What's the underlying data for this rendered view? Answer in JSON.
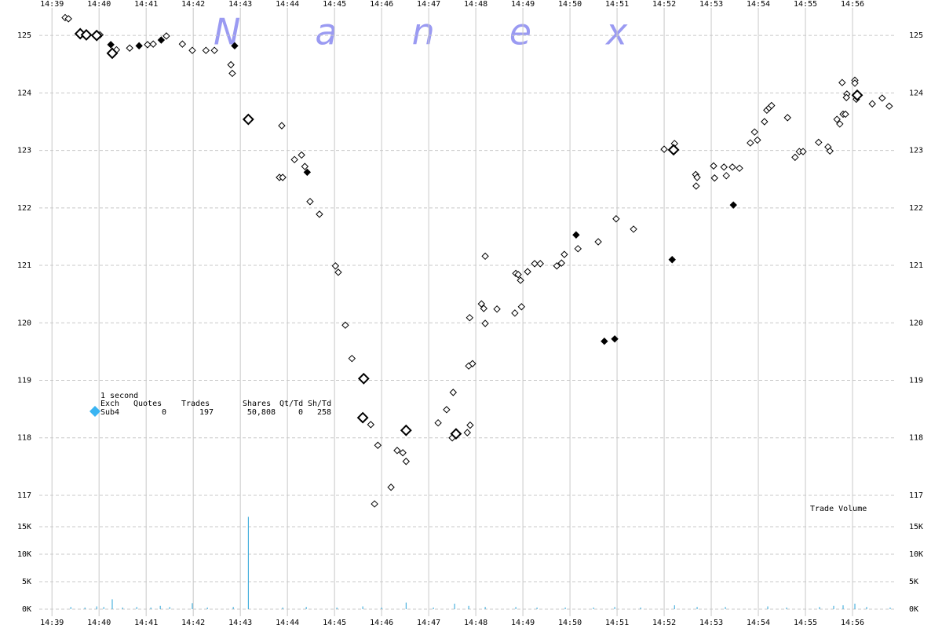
{
  "chart_data": {
    "type": "scatter",
    "watermark": "Nanex",
    "xlim": [
      878.73,
      896.9
    ],
    "xticks": [
      {
        "value": 879,
        "label": "14:39"
      },
      {
        "value": 880,
        "label": "14:40"
      },
      {
        "value": 881,
        "label": "14:41"
      },
      {
        "value": 882,
        "label": "14:42"
      },
      {
        "value": 883,
        "label": "14:43"
      },
      {
        "value": 884,
        "label": "14:44"
      },
      {
        "value": 885,
        "label": "14:45"
      },
      {
        "value": 886,
        "label": "14:46"
      },
      {
        "value": 887,
        "label": "14:47"
      },
      {
        "value": 888,
        "label": "14:48"
      },
      {
        "value": 889,
        "label": "14:49"
      },
      {
        "value": 890,
        "label": "14:50"
      },
      {
        "value": 891,
        "label": "14:51"
      },
      {
        "value": 892,
        "label": "14:52"
      },
      {
        "value": 893,
        "label": "14:53"
      },
      {
        "value": 894,
        "label": "14:54"
      },
      {
        "value": 895,
        "label": "14:55"
      },
      {
        "value": 896,
        "label": "14:56"
      }
    ],
    "ylim": [
      116.74,
      125.48
    ],
    "yticks": [
      117,
      118,
      119,
      120,
      121,
      122,
      123,
      124,
      125
    ],
    "grid": true,
    "series": [
      {
        "color": "#000000",
        "filled": false,
        "marker": "small",
        "x": [
          879.28,
          879.35,
          880.02,
          880.37,
          880.65,
          881.03,
          881.15,
          881.43,
          881.77,
          881.98,
          882.27,
          882.45,
          882.8,
          882.83,
          883.88,
          883.83,
          883.9,
          884.15,
          884.3,
          884.37,
          884.48,
          884.68,
          885.02,
          885.08,
          885.23,
          885.37,
          885.77,
          885.92,
          885.85,
          886.2,
          886.33,
          886.45,
          886.52,
          887.2,
          887.38,
          887.52,
          887.5,
          887.82,
          887.88,
          887.85,
          887.93,
          887.87,
          888.12,
          888.17,
          888.2,
          888.2,
          888.45,
          888.83,
          888.97,
          888.85,
          888.9,
          888.95,
          889.1,
          889.25,
          889.37,
          889.72,
          889.82,
          889.88,
          890.17,
          890.6,
          890.98,
          891.35,
          892.0,
          892.22,
          892.67,
          892.7,
          892.68,
          893.05,
          893.07,
          893.27,
          893.32,
          893.45,
          893.6,
          893.83,
          893.92,
          893.98,
          894.13,
          894.18,
          894.23,
          894.28,
          894.62,
          894.78,
          894.87,
          894.95,
          895.28,
          895.48,
          895.52,
          895.67,
          895.73,
          895.8,
          895.85,
          895.78,
          895.88,
          895.87,
          896.05,
          896.05,
          896.08,
          896.42,
          896.63,
          896.78
        ],
        "values": [
          125.31,
          125.29,
          125.01,
          124.75,
          124.78,
          124.84,
          124.85,
          124.99,
          124.85,
          124.74,
          124.74,
          124.74,
          124.49,
          124.34,
          123.43,
          122.53,
          122.53,
          122.84,
          122.92,
          122.72,
          122.11,
          121.89,
          120.99,
          120.88,
          119.96,
          119.38,
          118.23,
          117.87,
          116.85,
          117.14,
          117.78,
          117.74,
          117.59,
          118.26,
          118.49,
          118.79,
          118.0,
          118.09,
          118.22,
          119.25,
          119.29,
          120.09,
          120.33,
          120.25,
          119.99,
          121.16,
          120.24,
          120.17,
          120.28,
          120.86,
          120.84,
          120.74,
          120.89,
          121.03,
          121.03,
          120.99,
          121.04,
          121.19,
          121.29,
          121.41,
          121.81,
          121.63,
          123.02,
          123.12,
          122.58,
          122.53,
          122.38,
          122.73,
          122.52,
          122.71,
          122.56,
          122.71,
          122.69,
          123.13,
          123.32,
          123.18,
          123.5,
          123.7,
          123.74,
          123.78,
          123.57,
          122.88,
          122.98,
          122.98,
          123.14,
          123.06,
          122.99,
          123.54,
          123.46,
          123.63,
          123.63,
          124.18,
          123.98,
          123.92,
          124.22,
          124.17,
          123.89,
          123.81,
          123.91,
          123.77
        ]
      },
      {
        "color": "#000000",
        "filled": false,
        "marker": "large",
        "x": [
          879.6,
          879.73,
          879.95,
          880.28,
          883.17,
          885.62,
          885.6,
          886.52,
          887.58,
          892.2,
          896.1
        ],
        "values": [
          125.03,
          125.01,
          125.0,
          124.69,
          123.54,
          119.03,
          118.35,
          118.13,
          118.07,
          123.01,
          123.96
        ]
      },
      {
        "color": "#000000",
        "filled": true,
        "marker": "small",
        "x": [
          880.25,
          880.85,
          881.32,
          882.88,
          884.42,
          890.13,
          890.73,
          890.95,
          892.17,
          893.47
        ],
        "values": [
          124.84,
          124.82,
          124.92,
          124.82,
          122.62,
          121.53,
          119.68,
          119.72,
          121.1,
          122.05
        ]
      }
    ],
    "volume": {
      "label": "Trade Volume",
      "color": "#29a3d8",
      "ylim": [
        0,
        17000
      ],
      "yticks": [
        {
          "value": 0,
          "label": "0K"
        },
        {
          "value": 5000,
          "label": "5K"
        },
        {
          "value": 10000,
          "label": "10K"
        },
        {
          "value": 15000,
          "label": "15K"
        }
      ],
      "x": [
        879.4,
        879.7,
        879.95,
        880.1,
        880.28,
        880.5,
        880.8,
        881.1,
        881.3,
        881.5,
        881.98,
        882.3,
        882.85,
        883.17,
        883.9,
        884.4,
        885.05,
        885.6,
        886.0,
        886.52,
        887.1,
        887.55,
        887.85,
        888.2,
        888.85,
        889.3,
        889.9,
        890.5,
        890.95,
        891.5,
        892.22,
        892.7,
        893.3,
        894.2,
        894.6,
        895.3,
        895.6,
        895.8,
        896.05,
        896.3,
        896.8
      ],
      "values": [
        400,
        300,
        500,
        400,
        1800,
        300,
        400,
        300,
        600,
        400,
        1100,
        300,
        400,
        16800,
        300,
        400,
        300,
        500,
        300,
        1200,
        300,
        1000,
        600,
        400,
        400,
        300,
        300,
        300,
        400,
        300,
        700,
        400,
        400,
        500,
        300,
        400,
        600,
        700,
        1000,
        400,
        300
      ]
    },
    "info": {
      "interval": "1 second",
      "headers": [
        "Exch",
        "Quotes",
        "Trades",
        "Shares",
        "Qt/Td",
        "Sh/Td"
      ],
      "row": [
        "Sub4",
        "0",
        "197",
        "50,808",
        "0",
        "258"
      ],
      "color": "#3ab4f2"
    }
  }
}
